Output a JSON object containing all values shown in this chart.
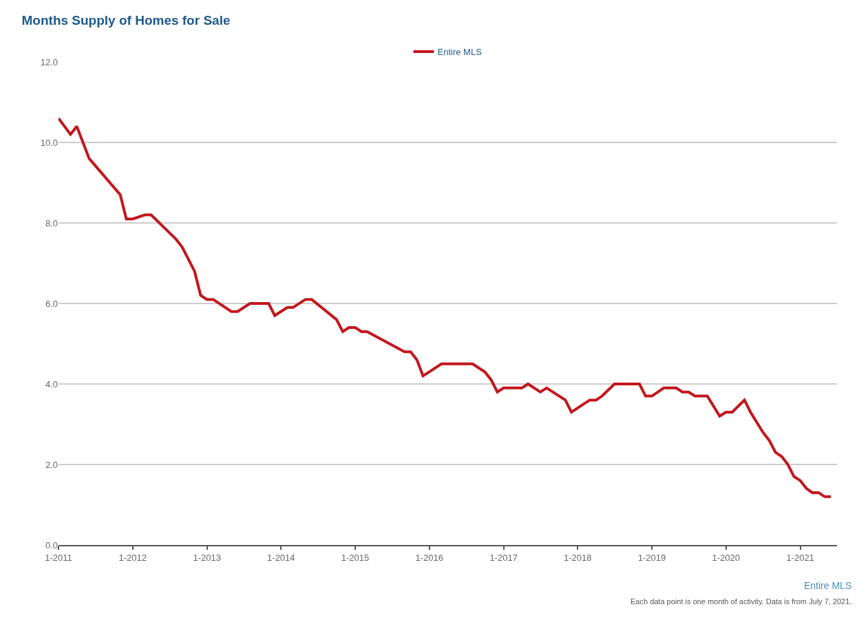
{
  "chart_data": {
    "type": "line",
    "title": "Months Supply of Homes for Sale",
    "x": [
      "2011-01",
      "2011-03",
      "2011-04",
      "2011-06",
      "2011-11",
      "2011-12",
      "2012-01",
      "2012-03",
      "2012-04",
      "2012-06",
      "2012-08",
      "2012-09",
      "2012-11",
      "2012-12",
      "2013-01",
      "2013-02",
      "2013-05",
      "2013-06",
      "2013-08",
      "2013-11",
      "2013-12",
      "2014-02",
      "2014-03",
      "2014-05",
      "2014-06",
      "2014-10",
      "2014-11",
      "2014-12",
      "2015-01",
      "2015-02",
      "2015-03",
      "2015-09",
      "2015-10",
      "2015-11",
      "2015-12",
      "2016-03",
      "2016-08",
      "2016-10",
      "2016-11",
      "2016-12",
      "2017-01",
      "2017-04",
      "2017-05",
      "2017-07",
      "2017-08",
      "2017-11",
      "2017-12",
      "2018-03",
      "2018-04",
      "2018-05",
      "2018-07",
      "2018-11",
      "2018-12",
      "2019-01",
      "2019-03",
      "2019-05",
      "2019-06",
      "2019-07",
      "2019-08",
      "2019-10",
      "2019-12",
      "2020-01",
      "2020-02",
      "2020-04",
      "2020-05",
      "2020-07",
      "2020-08",
      "2020-09",
      "2020-10",
      "2020-11",
      "2020-12",
      "2021-01",
      "2021-02",
      "2021-03",
      "2021-04",
      "2021-05",
      "2021-06"
    ],
    "series": [
      {
        "name": "Entire MLS",
        "color": "#c3161c",
        "values": [
          10.6,
          10.2,
          10.4,
          9.6,
          8.7,
          8.1,
          8.1,
          8.2,
          8.2,
          7.9,
          7.6,
          7.4,
          6.8,
          6.2,
          6.1,
          6.1,
          5.8,
          5.8,
          6.0,
          6.0,
          5.7,
          5.9,
          5.9,
          6.1,
          6.1,
          5.6,
          5.3,
          5.4,
          5.4,
          5.3,
          5.3,
          4.8,
          4.8,
          4.6,
          4.2,
          4.5,
          4.5,
          4.3,
          4.1,
          3.8,
          3.9,
          3.9,
          4.0,
          3.8,
          3.9,
          3.6,
          3.3,
          3.6,
          3.6,
          3.7,
          4.0,
          4.0,
          3.7,
          3.7,
          3.9,
          3.9,
          3.8,
          3.8,
          3.7,
          3.7,
          3.2,
          3.3,
          3.3,
          3.6,
          3.3,
          2.8,
          2.6,
          2.3,
          2.2,
          2.0,
          1.7,
          1.6,
          1.4,
          1.3,
          1.3,
          1.2,
          1.2
        ]
      }
    ],
    "xlim": [
      "2011-01",
      "2021-07"
    ],
    "xticks": [
      {
        "value": "2011-01",
        "label": "1-2011"
      },
      {
        "value": "2012-01",
        "label": "1-2012"
      },
      {
        "value": "2013-01",
        "label": "1-2013"
      },
      {
        "value": "2014-01",
        "label": "1-2014"
      },
      {
        "value": "2015-01",
        "label": "1-2015"
      },
      {
        "value": "2016-01",
        "label": "1-2016"
      },
      {
        "value": "2017-01",
        "label": "1-2017"
      },
      {
        "value": "2018-01",
        "label": "1-2018"
      },
      {
        "value": "2019-01",
        "label": "1-2019"
      },
      {
        "value": "2020-01",
        "label": "1-2020"
      },
      {
        "value": "2021-01",
        "label": "1-2021"
      }
    ],
    "ylim": [
      0,
      12
    ],
    "yticks": [
      {
        "value": 0,
        "label": "0.0"
      },
      {
        "value": 2,
        "label": "2.0"
      },
      {
        "value": 4,
        "label": "4.0"
      },
      {
        "value": 6,
        "label": "6.0"
      },
      {
        "value": 8,
        "label": "8.0"
      },
      {
        "value": 10,
        "label": "10.0"
      },
      {
        "value": 12,
        "label": "12.0"
      }
    ],
    "grid": "y",
    "legend": "top",
    "marker": "none",
    "line_style": "solid",
    "annotations": [
      "Entire MLS",
      "Each data point is one month of activity. Data is from July 7, 2021."
    ]
  }
}
